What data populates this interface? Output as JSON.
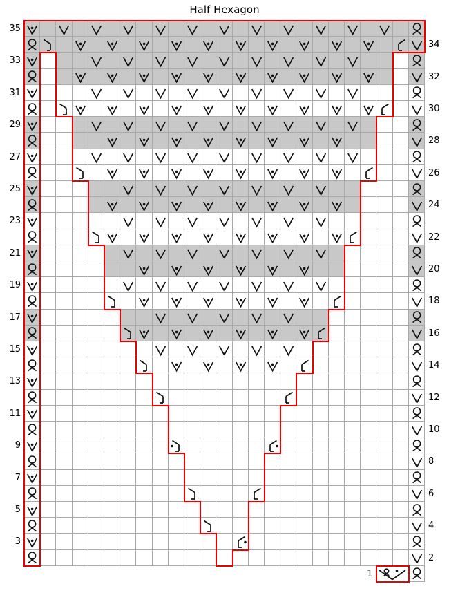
{
  "title": "Half Hexagon",
  "colors": {
    "shaded": "#c8c8c8",
    "outline": "#ee0000",
    "gridline": "#a9a9a9",
    "symbol": "#111111",
    "background": "#ffffff",
    "label": "#000000"
  },
  "icon_names": {
    "v": "slip-stitch-v-icon",
    "vd": "slip-stitch-v-dot-icon",
    "om": "twisted-loop-omega-icon",
    "incL": "increase-left-icon",
    "incR": "increase-right-icon",
    "incLd": "increase-left-dot-icon",
    "incRd": "increase-right-dot-icon",
    "cluster": "cluster-cast-on-icon"
  },
  "left_labels": [
    35,
    33,
    31,
    29,
    27,
    25,
    23,
    21,
    19,
    17,
    15,
    13,
    11,
    9,
    7,
    5,
    3
  ],
  "right_labels": [
    34,
    32,
    30,
    28,
    26,
    24,
    22,
    20,
    18,
    16,
    14,
    12,
    10,
    8,
    6,
    4,
    2
  ],
  "bottom_label": "1",
  "shaded_rows": [
    35,
    34,
    33,
    32,
    29,
    28,
    25,
    24,
    21,
    20,
    17,
    16
  ],
  "left_edge_column": {
    "col": 0,
    "row_from": 35,
    "row_to": 2,
    "odd_symbol": "vd",
    "even_symbol": "om"
  },
  "right_edge_column": {
    "col": 24,
    "row_from": 35,
    "row_to": 1,
    "odd_symbol": "om",
    "even_symbol": "v"
  },
  "cluster_box": {
    "row": 1,
    "col_from": 22,
    "col_to": 23,
    "symbol": "cluster"
  },
  "triangle_rows": [
    {
      "r": 35,
      "s": 1,
      "e": 23,
      "cells": [
        [
          2,
          "v"
        ],
        [
          4,
          "v"
        ],
        [
          6,
          "v"
        ],
        [
          8,
          "v"
        ],
        [
          10,
          "v"
        ],
        [
          12,
          "v"
        ],
        [
          14,
          "v"
        ],
        [
          16,
          "v"
        ],
        [
          18,
          "v"
        ],
        [
          20,
          "v"
        ],
        [
          22,
          "v"
        ]
      ]
    },
    {
      "r": 34,
      "s": 1,
      "e": 23,
      "cells": [
        [
          1,
          "incL"
        ],
        [
          3,
          "vd"
        ],
        [
          5,
          "vd"
        ],
        [
          7,
          "vd"
        ],
        [
          9,
          "vd"
        ],
        [
          11,
          "vd"
        ],
        [
          13,
          "vd"
        ],
        [
          15,
          "vd"
        ],
        [
          17,
          "vd"
        ],
        [
          19,
          "vd"
        ],
        [
          21,
          "vd"
        ],
        [
          23,
          "incR"
        ]
      ]
    },
    {
      "r": 33,
      "s": 2,
      "e": 22,
      "cells": [
        [
          4,
          "v"
        ],
        [
          6,
          "v"
        ],
        [
          8,
          "v"
        ],
        [
          10,
          "v"
        ],
        [
          12,
          "v"
        ],
        [
          14,
          "v"
        ],
        [
          16,
          "v"
        ],
        [
          18,
          "v"
        ],
        [
          20,
          "v"
        ]
      ]
    },
    {
      "r": 32,
      "s": 2,
      "e": 22,
      "cells": [
        [
          3,
          "vd"
        ],
        [
          5,
          "vd"
        ],
        [
          7,
          "vd"
        ],
        [
          9,
          "vd"
        ],
        [
          11,
          "vd"
        ],
        [
          13,
          "vd"
        ],
        [
          15,
          "vd"
        ],
        [
          17,
          "vd"
        ],
        [
          19,
          "vd"
        ],
        [
          21,
          "vd"
        ]
      ]
    },
    {
      "r": 31,
      "s": 2,
      "e": 22,
      "cells": [
        [
          4,
          "v"
        ],
        [
          6,
          "v"
        ],
        [
          8,
          "v"
        ],
        [
          10,
          "v"
        ],
        [
          12,
          "v"
        ],
        [
          14,
          "v"
        ],
        [
          16,
          "v"
        ],
        [
          18,
          "v"
        ],
        [
          20,
          "v"
        ]
      ]
    },
    {
      "r": 30,
      "s": 2,
      "e": 22,
      "cells": [
        [
          2,
          "incL"
        ],
        [
          3,
          "vd"
        ],
        [
          5,
          "vd"
        ],
        [
          7,
          "vd"
        ],
        [
          9,
          "vd"
        ],
        [
          11,
          "vd"
        ],
        [
          13,
          "vd"
        ],
        [
          15,
          "vd"
        ],
        [
          17,
          "vd"
        ],
        [
          19,
          "vd"
        ],
        [
          21,
          "vd"
        ],
        [
          22,
          "incR"
        ]
      ]
    },
    {
      "r": 29,
      "s": 3,
      "e": 21,
      "cells": [
        [
          4,
          "v"
        ],
        [
          6,
          "v"
        ],
        [
          8,
          "v"
        ],
        [
          10,
          "v"
        ],
        [
          12,
          "v"
        ],
        [
          14,
          "v"
        ],
        [
          16,
          "v"
        ],
        [
          18,
          "v"
        ],
        [
          20,
          "v"
        ]
      ]
    },
    {
      "r": 28,
      "s": 3,
      "e": 21,
      "cells": [
        [
          5,
          "vd"
        ],
        [
          7,
          "vd"
        ],
        [
          9,
          "vd"
        ],
        [
          11,
          "vd"
        ],
        [
          13,
          "vd"
        ],
        [
          15,
          "vd"
        ],
        [
          17,
          "vd"
        ],
        [
          19,
          "vd"
        ]
      ]
    },
    {
      "r": 27,
      "s": 3,
      "e": 21,
      "cells": [
        [
          4,
          "v"
        ],
        [
          6,
          "v"
        ],
        [
          8,
          "v"
        ],
        [
          10,
          "v"
        ],
        [
          12,
          "v"
        ],
        [
          14,
          "v"
        ],
        [
          16,
          "v"
        ],
        [
          18,
          "v"
        ],
        [
          20,
          "v"
        ]
      ]
    },
    {
      "r": 26,
      "s": 3,
      "e": 21,
      "cells": [
        [
          3,
          "incL"
        ],
        [
          5,
          "vd"
        ],
        [
          7,
          "vd"
        ],
        [
          9,
          "vd"
        ],
        [
          11,
          "vd"
        ],
        [
          13,
          "vd"
        ],
        [
          15,
          "vd"
        ],
        [
          17,
          "vd"
        ],
        [
          19,
          "vd"
        ],
        [
          21,
          "incR"
        ]
      ]
    },
    {
      "r": 25,
      "s": 4,
      "e": 20,
      "cells": [
        [
          6,
          "v"
        ],
        [
          8,
          "v"
        ],
        [
          10,
          "v"
        ],
        [
          12,
          "v"
        ],
        [
          14,
          "v"
        ],
        [
          16,
          "v"
        ],
        [
          18,
          "v"
        ]
      ]
    },
    {
      "r": 24,
      "s": 4,
      "e": 20,
      "cells": [
        [
          5,
          "vd"
        ],
        [
          7,
          "vd"
        ],
        [
          9,
          "vd"
        ],
        [
          11,
          "vd"
        ],
        [
          13,
          "vd"
        ],
        [
          15,
          "vd"
        ],
        [
          17,
          "vd"
        ],
        [
          19,
          "vd"
        ]
      ]
    },
    {
      "r": 23,
      "s": 4,
      "e": 20,
      "cells": [
        [
          6,
          "v"
        ],
        [
          8,
          "v"
        ],
        [
          10,
          "v"
        ],
        [
          12,
          "v"
        ],
        [
          14,
          "v"
        ],
        [
          16,
          "v"
        ],
        [
          18,
          "v"
        ]
      ]
    },
    {
      "r": 22,
      "s": 4,
      "e": 20,
      "cells": [
        [
          4,
          "incL"
        ],
        [
          5,
          "vd"
        ],
        [
          7,
          "vd"
        ],
        [
          9,
          "vd"
        ],
        [
          11,
          "vd"
        ],
        [
          13,
          "vd"
        ],
        [
          15,
          "vd"
        ],
        [
          17,
          "vd"
        ],
        [
          19,
          "vd"
        ],
        [
          20,
          "incR"
        ]
      ]
    },
    {
      "r": 21,
      "s": 5,
      "e": 19,
      "cells": [
        [
          6,
          "v"
        ],
        [
          8,
          "v"
        ],
        [
          10,
          "v"
        ],
        [
          12,
          "v"
        ],
        [
          14,
          "v"
        ],
        [
          16,
          "v"
        ],
        [
          18,
          "v"
        ]
      ]
    },
    {
      "r": 20,
      "s": 5,
      "e": 19,
      "cells": [
        [
          7,
          "vd"
        ],
        [
          9,
          "vd"
        ],
        [
          11,
          "vd"
        ],
        [
          13,
          "vd"
        ],
        [
          15,
          "vd"
        ],
        [
          17,
          "vd"
        ]
      ]
    },
    {
      "r": 19,
      "s": 5,
      "e": 19,
      "cells": [
        [
          6,
          "v"
        ],
        [
          8,
          "v"
        ],
        [
          10,
          "v"
        ],
        [
          12,
          "v"
        ],
        [
          14,
          "v"
        ],
        [
          16,
          "v"
        ],
        [
          18,
          "v"
        ]
      ]
    },
    {
      "r": 18,
      "s": 5,
      "e": 19,
      "cells": [
        [
          5,
          "incL"
        ],
        [
          7,
          "vd"
        ],
        [
          9,
          "vd"
        ],
        [
          11,
          "vd"
        ],
        [
          13,
          "vd"
        ],
        [
          15,
          "vd"
        ],
        [
          17,
          "vd"
        ],
        [
          19,
          "incR"
        ]
      ]
    },
    {
      "r": 17,
      "s": 6,
      "e": 18,
      "cells": [
        [
          8,
          "v"
        ],
        [
          10,
          "v"
        ],
        [
          12,
          "v"
        ],
        [
          14,
          "v"
        ],
        [
          16,
          "v"
        ]
      ]
    },
    {
      "r": 16,
      "s": 6,
      "e": 18,
      "cells": [
        [
          6,
          "incL"
        ],
        [
          7,
          "vd"
        ],
        [
          9,
          "vd"
        ],
        [
          11,
          "vd"
        ],
        [
          13,
          "vd"
        ],
        [
          15,
          "vd"
        ],
        [
          17,
          "vd"
        ],
        [
          18,
          "incR"
        ]
      ]
    },
    {
      "r": 15,
      "s": 7,
      "e": 17,
      "cells": [
        [
          8,
          "v"
        ],
        [
          10,
          "v"
        ],
        [
          12,
          "v"
        ],
        [
          14,
          "v"
        ],
        [
          16,
          "v"
        ]
      ]
    },
    {
      "r": 14,
      "s": 7,
      "e": 17,
      "cells": [
        [
          7,
          "incL"
        ],
        [
          9,
          "vd"
        ],
        [
          11,
          "vd"
        ],
        [
          13,
          "vd"
        ],
        [
          15,
          "vd"
        ],
        [
          17,
          "incR"
        ]
      ]
    },
    {
      "r": 13,
      "s": 8,
      "e": 16,
      "cells": []
    },
    {
      "r": 12,
      "s": 8,
      "e": 16,
      "cells": [
        [
          8,
          "incL"
        ],
        [
          16,
          "incR"
        ]
      ]
    },
    {
      "r": 11,
      "s": 9,
      "e": 15,
      "cells": []
    },
    {
      "r": 10,
      "s": 9,
      "e": 15,
      "cells": []
    },
    {
      "r": 9,
      "s": 9,
      "e": 15,
      "cells": [
        [
          9,
          "incLd"
        ],
        [
          15,
          "incRd"
        ]
      ]
    },
    {
      "r": 8,
      "s": 10,
      "e": 14,
      "cells": []
    },
    {
      "r": 7,
      "s": 10,
      "e": 14,
      "cells": []
    },
    {
      "r": 6,
      "s": 10,
      "e": 14,
      "cells": [
        [
          10,
          "incL"
        ],
        [
          14,
          "incR"
        ]
      ]
    },
    {
      "r": 5,
      "s": 11,
      "e": 13,
      "cells": []
    },
    {
      "r": 4,
      "s": 11,
      "e": 13,
      "cells": [
        [
          11,
          "incL"
        ]
      ]
    },
    {
      "r": 3,
      "s": 12,
      "e": 13,
      "cells": [
        [
          13,
          "incRd"
        ]
      ]
    },
    {
      "r": 2,
      "s": 12,
      "e": 12,
      "cells": []
    }
  ]
}
